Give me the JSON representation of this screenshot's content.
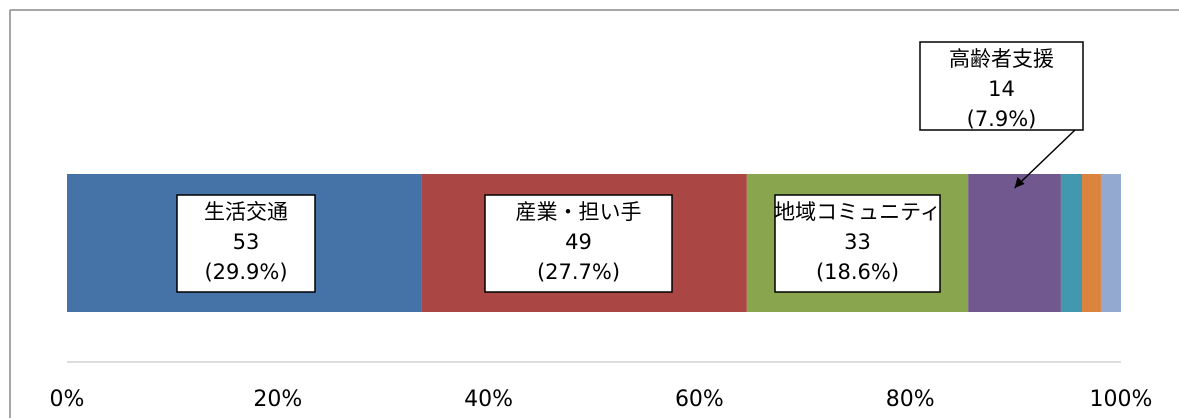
{
  "chart_data": {
    "type": "stacked_bar",
    "series": [
      {
        "color": "#4572a7",
        "values": [
          33.6
        ]
      },
      {
        "color": "#aa4643",
        "values": [
          30.9
        ]
      },
      {
        "color": "#89a54e",
        "values": [
          21.0
        ]
      },
      {
        "color": "#71588f",
        "values": [
          8.8
        ]
      },
      {
        "color": "#4198af",
        "values": [
          2.0
        ]
      },
      {
        "color": "#db843d",
        "values": [
          1.8
        ]
      },
      {
        "color": "#93a9cf",
        "values": [
          1.9
        ]
      }
    ],
    "annotations": [
      [
        "生活交通",
        "53",
        "(29.9%)"
      ],
      [
        "産業・担い手",
        "49",
        "(27.7%)"
      ],
      [
        "地域コミュニティ",
        "33",
        "(18.6%)"
      ],
      [
        "高齢者支援",
        "14",
        "(7.9%)"
      ]
    ],
    "xlim": [
      0,
      100
    ],
    "xticks": [
      {
        "value": 0,
        "label": "0%"
      },
      {
        "value": 20,
        "label": "20%"
      },
      {
        "value": 40,
        "label": "40%"
      },
      {
        "value": 60,
        "label": "60%"
      },
      {
        "value": 80,
        "label": "80%"
      },
      {
        "value": 100,
        "label": "100%"
      }
    ]
  }
}
